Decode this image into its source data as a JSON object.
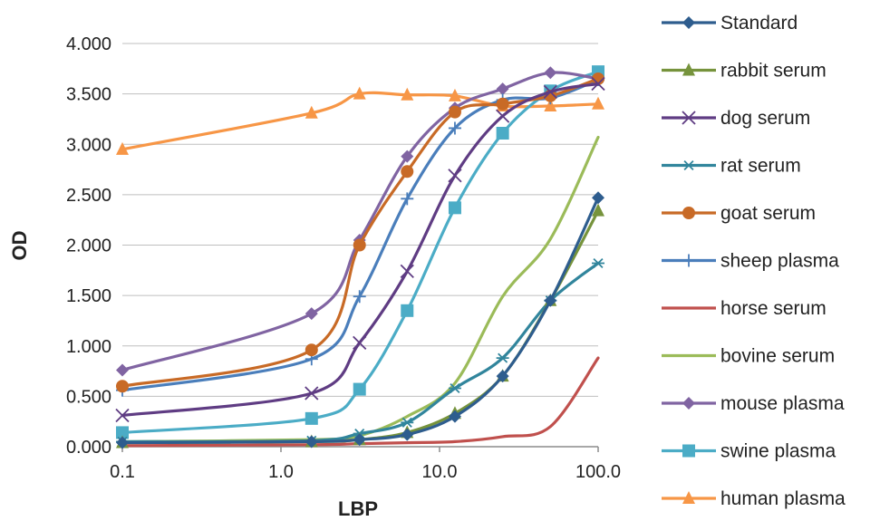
{
  "chart_data": {
    "type": "line",
    "xscale": "log",
    "xlabel": "LBP",
    "ylabel": "OD",
    "xlim": [
      0.1,
      100
    ],
    "ylim": [
      0,
      4
    ],
    "xticks": [
      "0.1",
      "1.0",
      "10.0",
      "100.0"
    ],
    "yticks": [
      "0.000",
      "0.500",
      "1.000",
      "1.500",
      "2.000",
      "2.500",
      "3.000",
      "3.500",
      "4.000"
    ],
    "grid": "horizontal",
    "legend_position": "right",
    "series": [
      {
        "name": "Standard",
        "color": "#2E5D8E",
        "marker": "diamond",
        "x": [
          0.1,
          1.56,
          3.13,
          6.25,
          12.5,
          25,
          50,
          100
        ],
        "y": [
          0.04,
          0.05,
          0.07,
          0.12,
          0.3,
          0.7,
          1.45,
          2.47
        ]
      },
      {
        "name": "rabbit serum",
        "color": "#76933C",
        "marker": "triangle",
        "x": [
          0.1,
          1.56,
          3.13,
          6.25,
          12.5,
          25,
          50,
          100
        ],
        "y": [
          0.04,
          0.05,
          0.07,
          0.14,
          0.33,
          0.7,
          1.45,
          2.34
        ]
      },
      {
        "name": "dog serum",
        "color": "#5F3C83",
        "marker": "x",
        "x": [
          0.1,
          1.56,
          3.13,
          6.25,
          12.5,
          25,
          50,
          100
        ],
        "y": [
          0.31,
          0.53,
          1.03,
          1.74,
          2.69,
          3.28,
          3.52,
          3.6
        ]
      },
      {
        "name": "rat serum",
        "color": "#31859C",
        "marker": "star",
        "x": [
          0.1,
          1.56,
          3.13,
          6.25,
          12.5,
          25,
          50,
          100
        ],
        "y": [
          0.05,
          0.06,
          0.13,
          0.24,
          0.58,
          0.88,
          1.45,
          1.82
        ]
      },
      {
        "name": "goat serum",
        "color": "#C86A26",
        "marker": "circle",
        "x": [
          0.1,
          1.56,
          3.13,
          6.25,
          12.5,
          25,
          50,
          100
        ],
        "y": [
          0.6,
          0.96,
          2.0,
          2.73,
          3.32,
          3.4,
          3.48,
          3.65
        ]
      },
      {
        "name": "sheep plasma",
        "color": "#4A7EBB",
        "marker": "plus",
        "x": [
          0.1,
          1.56,
          3.13,
          6.25,
          12.5,
          25,
          50,
          100
        ],
        "y": [
          0.56,
          0.87,
          1.49,
          2.46,
          3.16,
          3.44,
          3.46,
          3.64
        ]
      },
      {
        "name": "horse serum",
        "color": "#C0504D",
        "marker": "none",
        "x": [
          0.1,
          1.56,
          3.13,
          6.25,
          12.5,
          25,
          50,
          100
        ],
        "y": [
          0.01,
          0.02,
          0.03,
          0.04,
          0.05,
          0.1,
          0.2,
          0.88
        ]
      },
      {
        "name": "bovine serum",
        "color": "#9BBB59",
        "marker": "none",
        "x": [
          0.1,
          1.56,
          3.13,
          6.25,
          12.5,
          25,
          50,
          100
        ],
        "y": [
          0.05,
          0.07,
          0.11,
          0.3,
          0.63,
          1.49,
          2.06,
          3.07
        ]
      },
      {
        "name": "mouse plasma",
        "color": "#8064A2",
        "marker": "diamond",
        "x": [
          0.1,
          1.56,
          3.13,
          6.25,
          12.5,
          25,
          50,
          100
        ],
        "y": [
          0.76,
          1.32,
          2.05,
          2.88,
          3.36,
          3.55,
          3.71,
          3.65
        ]
      },
      {
        "name": "swine plasma",
        "color": "#4BACC6",
        "marker": "square",
        "x": [
          0.1,
          1.56,
          3.13,
          6.25,
          12.5,
          25,
          50,
          100
        ],
        "y": [
          0.14,
          0.28,
          0.57,
          1.35,
          2.37,
          3.11,
          3.53,
          3.72
        ]
      },
      {
        "name": "human plasma",
        "color": "#F79646",
        "marker": "triangle",
        "x": [
          0.1,
          1.56,
          3.13,
          6.25,
          12.5,
          25,
          50,
          100
        ],
        "y": [
          2.95,
          3.31,
          3.5,
          3.49,
          3.48,
          3.38,
          3.38,
          3.4
        ]
      }
    ]
  }
}
